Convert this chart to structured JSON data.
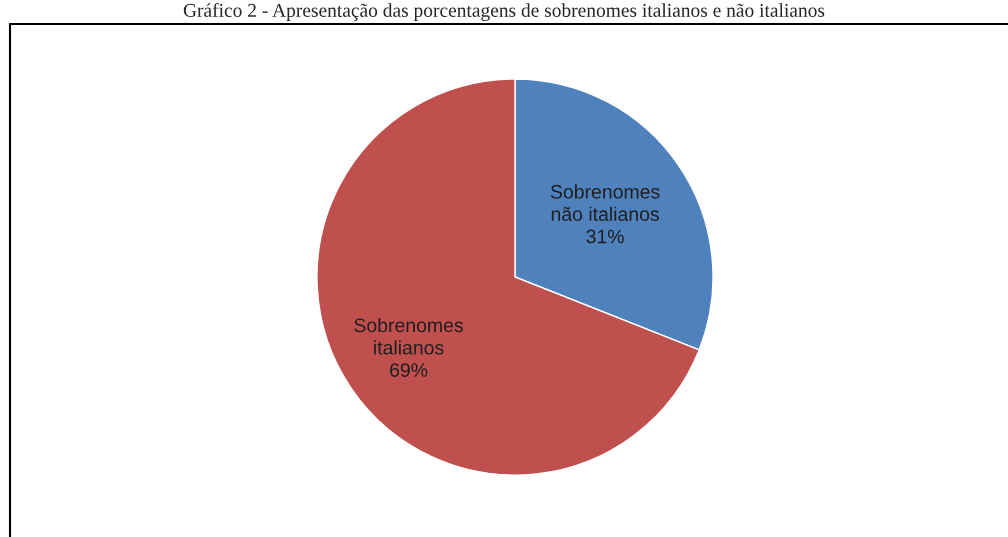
{
  "chart_data": {
    "type": "pie",
    "title": "Gráfico 2 - Apresentação das porcentagens de sobrenomes italianos e não italianos",
    "categories": [
      "Sobrenomes não italianos",
      "Sobrenomes italianos"
    ],
    "values": [
      31,
      69
    ],
    "value_labels": [
      "31%",
      "69%"
    ],
    "colors": [
      "#4f81bd",
      "#c0504d"
    ],
    "legend": false
  }
}
